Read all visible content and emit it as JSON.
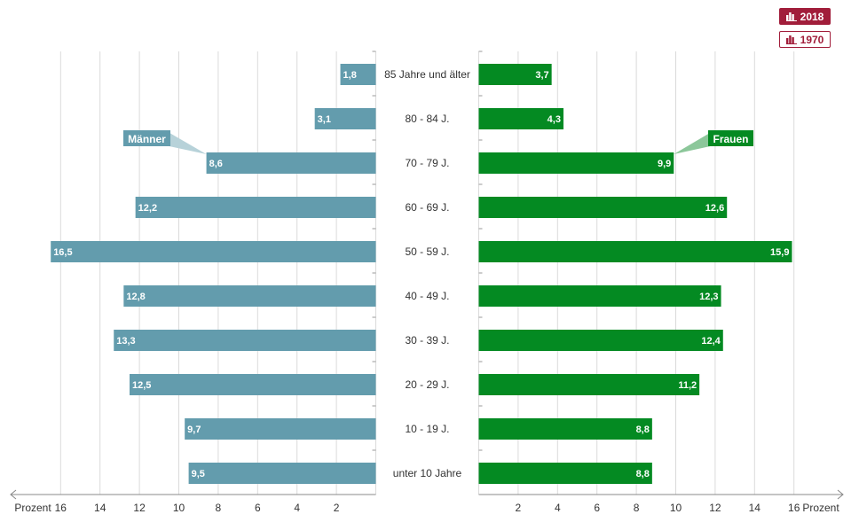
{
  "toggles": [
    {
      "label": "2018",
      "active": true,
      "icon": "bar-chart-icon"
    },
    {
      "label": "1970",
      "active": false,
      "icon": "bar-chart-icon"
    }
  ],
  "colors": {
    "men": "#639cad",
    "women": "#048a22",
    "accent": "#a11d3a",
    "men_callout": "#b7d2d9",
    "women_callout": "#8cc79a"
  },
  "chart_data": {
    "type": "bar",
    "orientation": "horizontal",
    "layout": "population-pyramid",
    "categories": [
      "85 Jahre und älter",
      "80 - 84 J.",
      "70 - 79 J.",
      "60 - 69 J.",
      "50 - 59 J.",
      "40 - 49 J.",
      "30 - 39 J.",
      "20 - 29 J.",
      "10 - 19 J.",
      "unter 10 Jahre"
    ],
    "series": [
      {
        "name": "Männer",
        "side": "left",
        "values": [
          1.8,
          3.1,
          8.6,
          12.2,
          16.5,
          12.8,
          13.3,
          12.5,
          9.7,
          9.5
        ],
        "labels": [
          "1,8",
          "3,1",
          "8,6",
          "12,2",
          "16,5",
          "12,8",
          "13,3",
          "12,5",
          "9,7",
          "9,5"
        ]
      },
      {
        "name": "Frauen",
        "side": "right",
        "values": [
          3.7,
          4.3,
          9.9,
          12.6,
          15.9,
          12.3,
          12.4,
          11.2,
          8.8,
          8.8
        ],
        "labels": [
          "3,7",
          "4,3",
          "9,9",
          "12,6",
          "15,9",
          "12,3",
          "12,4",
          "11,2",
          "8,8",
          "8,8"
        ]
      }
    ],
    "xlim": [
      0,
      16
    ],
    "xticks_left": [
      "16",
      "14",
      "12",
      "10",
      "8",
      "6",
      "4",
      "2"
    ],
    "xticks_right": [
      "2",
      "4",
      "6",
      "8",
      "10",
      "12",
      "14",
      "16"
    ],
    "xlabel_left": "Prozent",
    "xlabel_right": "Prozent",
    "grid": true
  }
}
